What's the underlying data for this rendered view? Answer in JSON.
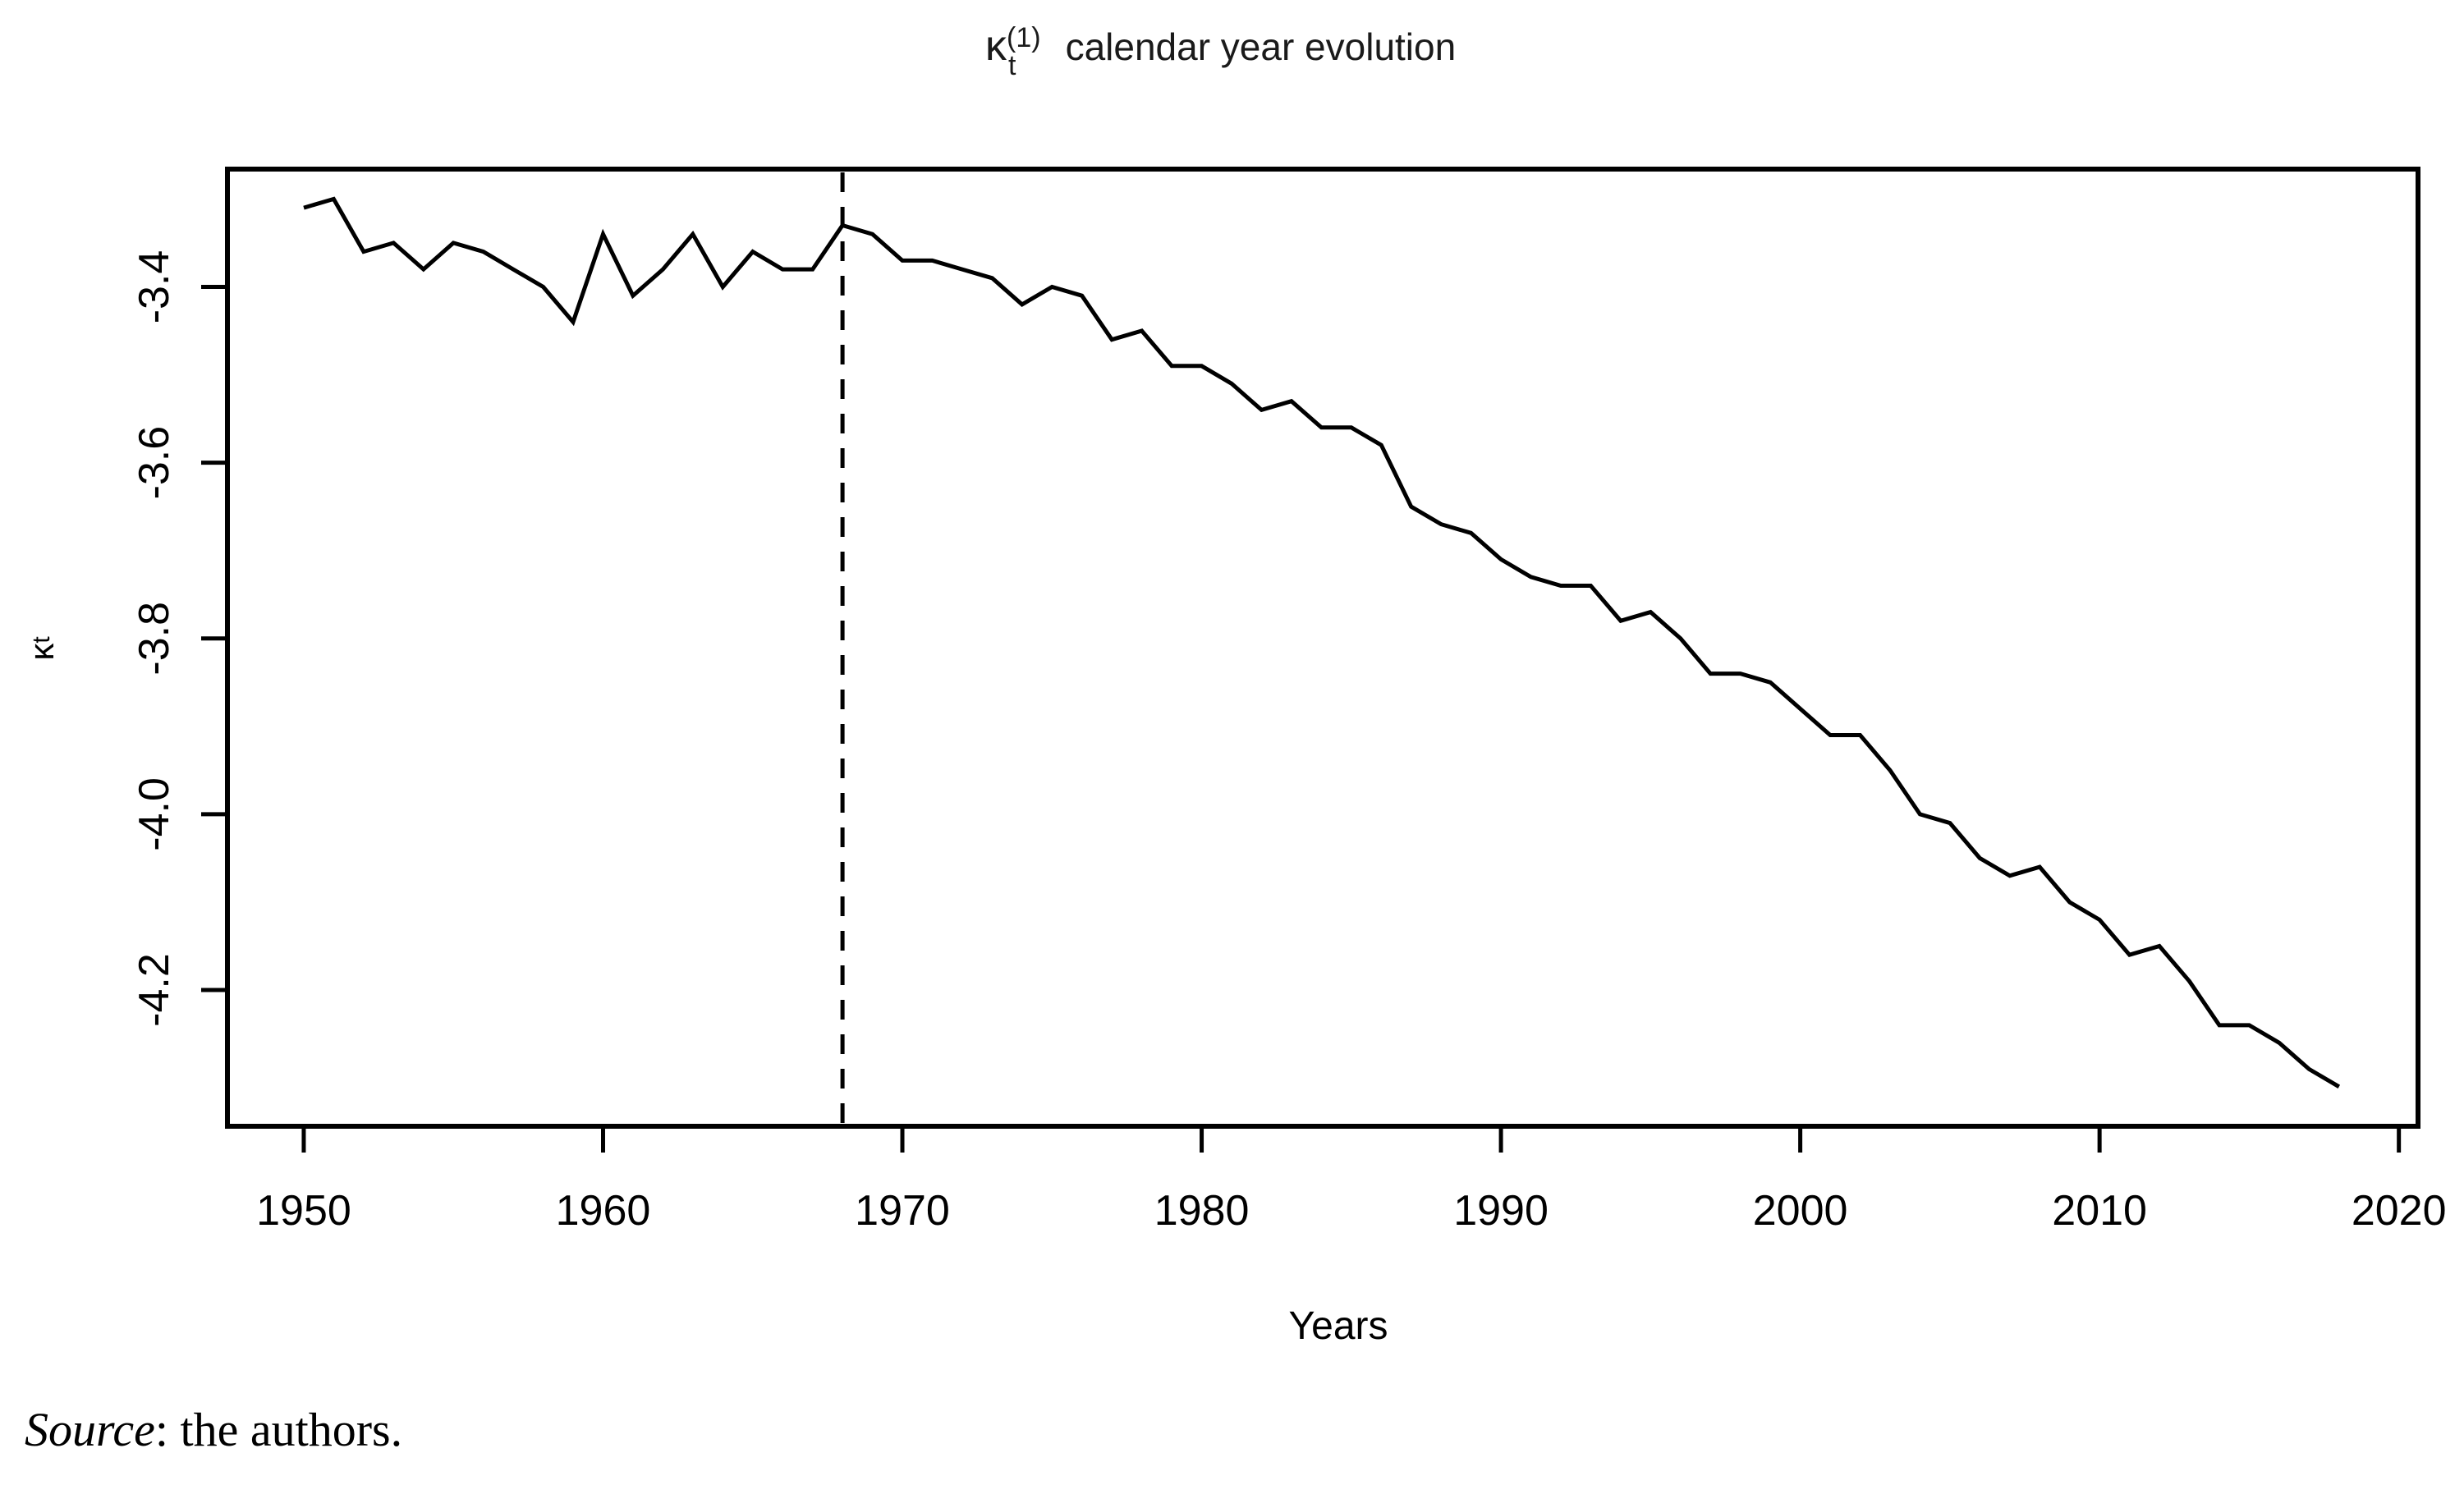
{
  "title": {
    "kappa": "κ",
    "sup": "(1)",
    "sub": "t",
    "text": "calendar year evolution"
  },
  "axes": {
    "x_label": "Years",
    "y_label_kappa": "κ",
    "y_label_sub": "t"
  },
  "source": {
    "italic_part": "Source",
    "rest_part": ": the authors."
  },
  "colors": {
    "line": "#000000",
    "frame": "#000000",
    "background": "#ffffff"
  },
  "chart_data": {
    "type": "line",
    "title": "κ_t^(1) calendar year evolution",
    "xlabel": "Years",
    "ylabel": "κ_t",
    "legend": "none",
    "grid": false,
    "x_ticks": [
      1950,
      1960,
      1970,
      1980,
      1990,
      2000,
      2010,
      2020
    ],
    "y_ticks": [
      -3.4,
      -3.6,
      -3.8,
      -4.0,
      -4.2
    ],
    "xlim": [
      1947.45,
      2020.64
    ],
    "ylim": [
      -4.355,
      -3.266
    ],
    "vline": {
      "x": 1968,
      "style": "dashed"
    },
    "x": [
      1950,
      1951,
      1952,
      1953,
      1954,
      1955,
      1956,
      1957,
      1958,
      1959,
      1960,
      1961,
      1962,
      1963,
      1964,
      1965,
      1966,
      1967,
      1968,
      1969,
      1970,
      1971,
      1972,
      1973,
      1974,
      1975,
      1976,
      1977,
      1978,
      1979,
      1980,
      1981,
      1982,
      1983,
      1984,
      1985,
      1986,
      1987,
      1988,
      1989,
      1990,
      1991,
      1992,
      1993,
      1994,
      1995,
      1996,
      1997,
      1998,
      1999,
      2000,
      2001,
      2002,
      2003,
      2004,
      2005,
      2006,
      2007,
      2008,
      2009,
      2010,
      2011,
      2012,
      2013,
      2014,
      2015,
      2016,
      2017,
      2018
    ],
    "values": [
      -3.31,
      -3.3,
      -3.36,
      -3.35,
      -3.38,
      -3.35,
      -3.36,
      -3.38,
      -3.4,
      -3.44,
      -3.34,
      -3.41,
      -3.38,
      -3.34,
      -3.4,
      -3.36,
      -3.38,
      -3.38,
      -3.33,
      -3.34,
      -3.37,
      -3.37,
      -3.38,
      -3.39,
      -3.42,
      -3.4,
      -3.41,
      -3.46,
      -3.45,
      -3.49,
      -3.49,
      -3.51,
      -3.54,
      -3.53,
      -3.56,
      -3.56,
      -3.58,
      -3.65,
      -3.67,
      -3.68,
      -3.71,
      -3.73,
      -3.74,
      -3.74,
      -3.78,
      -3.77,
      -3.8,
      -3.84,
      -3.84,
      -3.85,
      -3.88,
      -3.91,
      -3.91,
      -3.95,
      -4.0,
      -4.01,
      -4.05,
      -4.07,
      -4.06,
      -4.1,
      -4.12,
      -4.16,
      -4.15,
      -4.19,
      -4.24,
      -4.24,
      -4.26,
      -4.29,
      -4.31
    ]
  }
}
